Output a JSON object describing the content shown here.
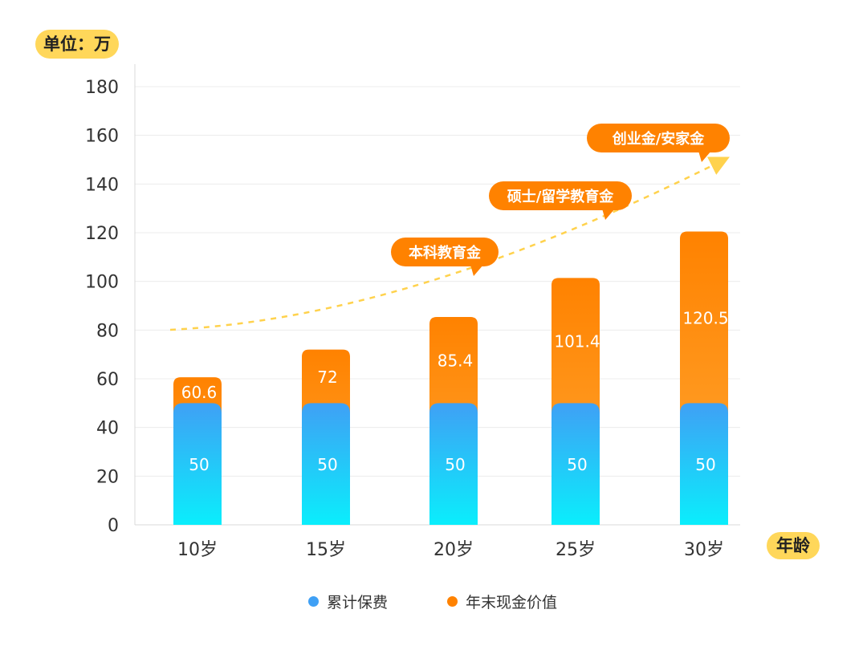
{
  "unit_label": "单位：万",
  "x_axis_badge": "年龄",
  "legend": [
    {
      "label": "累计保费",
      "color": "#3fa0f5"
    },
    {
      "label": "年末现金价值",
      "color": "#ff8200"
    }
  ],
  "milestones": [
    {
      "label": "本科教育金",
      "anchor_category": "20岁"
    },
    {
      "label": "硕士/留学教育金",
      "anchor_category": "25岁"
    },
    {
      "label": "创业金/安家金",
      "anchor_category": "30岁"
    }
  ],
  "colors": {
    "premium_top": "#3fa0f5",
    "premium_bottom": "#0aeefc",
    "value_top": "#ff8200",
    "value_bottom": "#ffa733",
    "badge": "#ffd75a",
    "trend_line": "#ffd24d",
    "callout": "#ff8200"
  },
  "chart_data": {
    "type": "bar",
    "stacked": true,
    "categories": [
      "10岁",
      "15岁",
      "20岁",
      "25岁",
      "30岁"
    ],
    "series": [
      {
        "name": "累计保费",
        "values": [
          50,
          50,
          50,
          50,
          50
        ],
        "labels": [
          "50",
          "50",
          "50",
          "50",
          "50"
        ]
      },
      {
        "name": "年末现金价值",
        "values": [
          60.6,
          72,
          85.4,
          101.4,
          120.5
        ],
        "labels": [
          "60.6",
          "72",
          "85.4",
          "101.4",
          "120.5"
        ]
      }
    ],
    "ylim": [
      0,
      180
    ],
    "yticks": [
      0,
      20,
      40,
      60,
      80,
      100,
      120,
      140,
      160,
      180
    ],
    "grid": true,
    "legend_position": "bottom"
  }
}
